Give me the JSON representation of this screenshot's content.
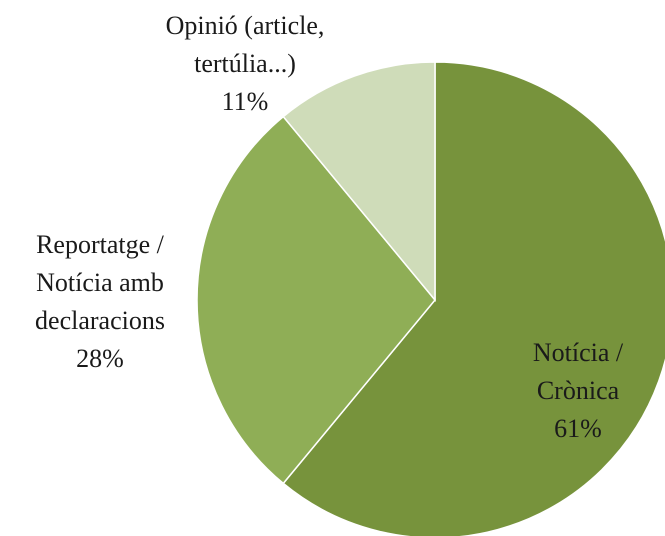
{
  "chart_data": {
    "type": "pie",
    "categories": [
      [
        "Notícia /",
        "Crònica"
      ],
      [
        "Reportatge /",
        "Notícia amb",
        "declaracions"
      ],
      [
        "Opinió (article,",
        "tertúlia...)"
      ]
    ],
    "values": [
      61,
      28,
      11
    ],
    "value_labels": [
      "61%",
      "28%",
      "11%"
    ],
    "colors": [
      "#77933c",
      "#8fae56",
      "#cfdcb9"
    ]
  }
}
